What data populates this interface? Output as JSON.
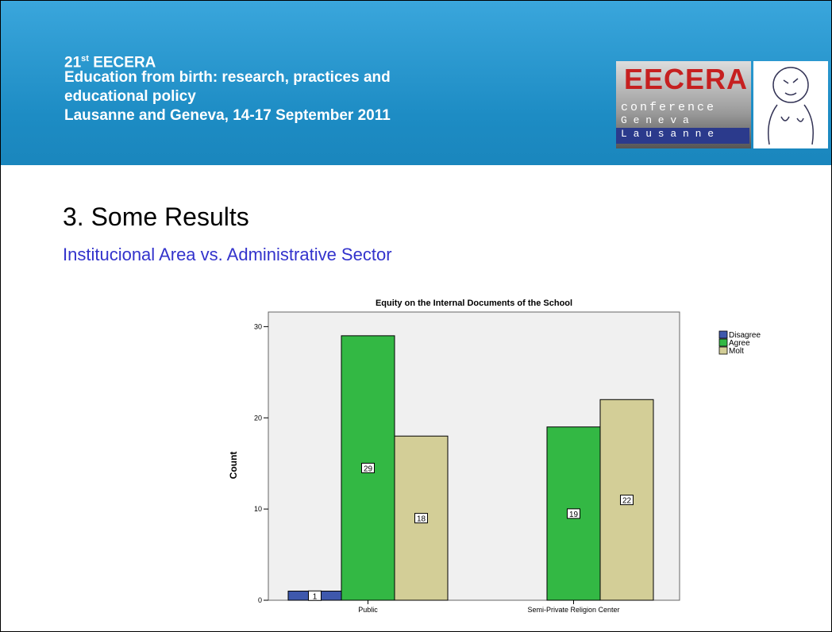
{
  "header": {
    "edition": "21",
    "edition_suffix": "st",
    "name": "EECERA",
    "lines": [
      "Education from birth: research, practices and",
      "educational policy",
      "Lausanne and Geneva, 14-17 September 2011"
    ],
    "logo": {
      "name": "EECERA",
      "line1": "conference",
      "line2": "G e n e v a",
      "line3": "L a u s a n n e"
    }
  },
  "slide": {
    "title": "3. Some Results",
    "subtitle": "Institucional Area vs. Administrative Sector"
  },
  "chart_data": {
    "type": "bar",
    "title": "Equity on the Internal Documents of the School",
    "y_label": "Count",
    "categories": [
      "Public",
      "Semi-Private Religion Center"
    ],
    "series": [
      {
        "name": "Disagree",
        "color": "#3e58ac",
        "values": [
          1,
          null
        ]
      },
      {
        "name": "Agree",
        "color": "#33b844",
        "values": [
          29,
          19
        ]
      },
      {
        "name": "Molt",
        "color": "#d3ce97",
        "values": [
          18,
          22
        ]
      }
    ],
    "ylim": [
      0,
      31.6
    ],
    "yticks": [
      0,
      10,
      20,
      30
    ],
    "legend": "right"
  }
}
